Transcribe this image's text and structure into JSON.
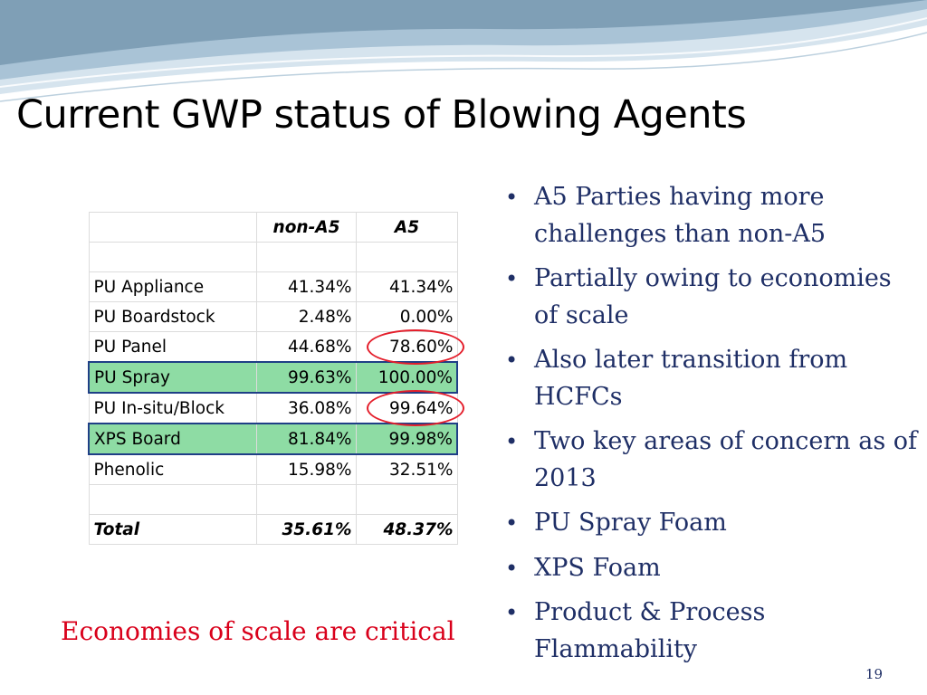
{
  "slide": {
    "title": "Current GWP status of Blowing Agents",
    "caption": "Economies of scale are critical",
    "page_number": "19"
  },
  "table": {
    "columns": [
      "",
      "non-A5",
      "A5"
    ],
    "rows": [
      {
        "label": "",
        "non_a5": "",
        "a5": ""
      },
      {
        "label": "PU Appliance",
        "non_a5": "41.34%",
        "a5": "41.34%"
      },
      {
        "label": "PU Boardstock",
        "non_a5": "2.48%",
        "a5": "0.00%"
      },
      {
        "label": "PU Panel",
        "non_a5": "44.68%",
        "a5": "78.60%",
        "a5_circled": true
      },
      {
        "label": "PU Spray",
        "non_a5": "99.63%",
        "a5": "100.00%",
        "highlighted": true
      },
      {
        "label": "PU In-situ/Block",
        "non_a5": "36.08%",
        "a5": "99.64%",
        "a5_circled": true
      },
      {
        "label": "XPS Board",
        "non_a5": "81.84%",
        "a5": "99.98%",
        "highlighted": true
      },
      {
        "label": "Phenolic",
        "non_a5": "15.98%",
        "a5": "32.51%"
      },
      {
        "label": "",
        "non_a5": "",
        "a5": ""
      },
      {
        "label": "Total",
        "non_a5": "35.61%",
        "a5": "48.37%",
        "is_total": true
      }
    ]
  },
  "bullets": [
    "A5 Parties having more challenges than non-A5",
    "Partially owing to economies of scale",
    "Also later transition from HCFCs",
    "Two key areas of concern as of 2013",
    "PU Spray Foam",
    "XPS Foam",
    "Product & Process Flammability"
  ],
  "colors": {
    "title": "#000000",
    "bullet_text": "#1f2f66",
    "caption": "#d9001b",
    "row_highlight": "#8edca4",
    "highlight_border": "#1f3f86",
    "circle": "#e41e2b",
    "wave_light": "#d6e4ee",
    "wave_mid": "#a9c3d6",
    "wave_dark": "#7f9fb6"
  }
}
